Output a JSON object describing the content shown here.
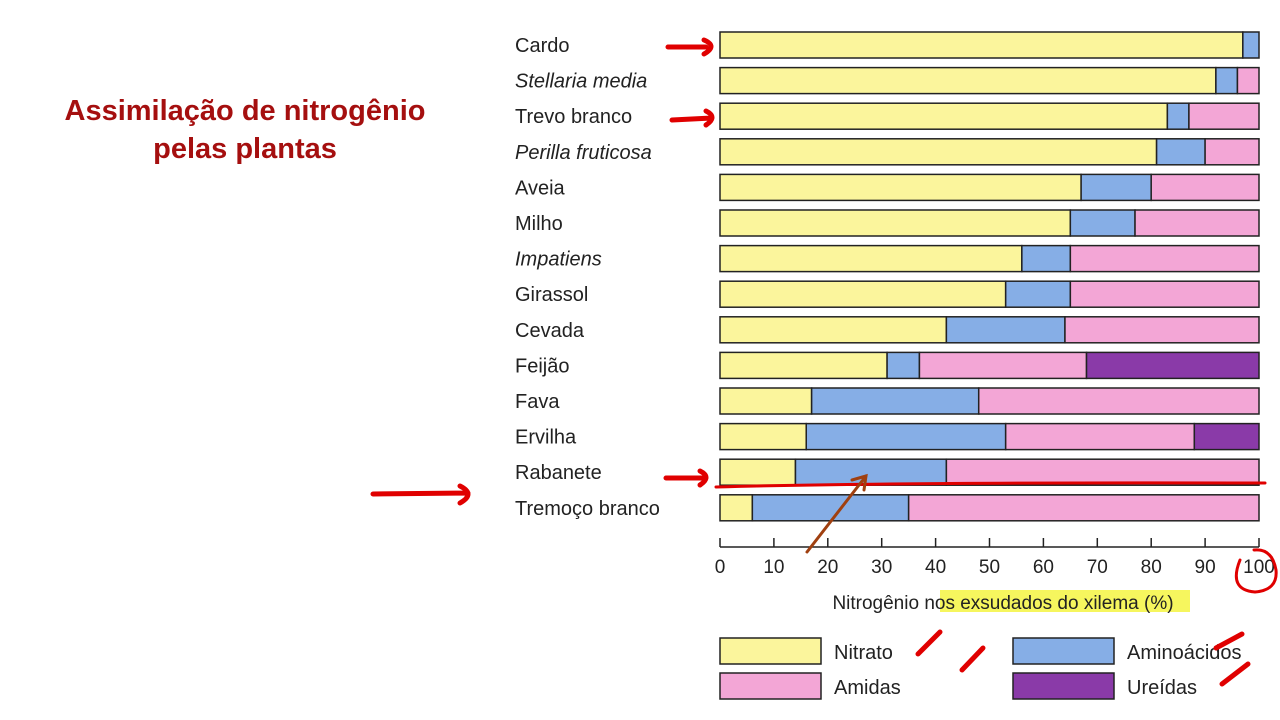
{
  "slide": {
    "title_line1": "Assimilação de nitrogênio",
    "title_line2": "pelas plantas"
  },
  "chart_data": {
    "type": "bar",
    "orientation": "horizontal",
    "stacked": true,
    "xlabel": "Nitrogênio nos exsudados do xilema (%)",
    "xlim": [
      0,
      100
    ],
    "xticks": [
      0,
      10,
      20,
      30,
      40,
      50,
      60,
      70,
      80,
      90,
      100
    ],
    "categories": [
      "Cardo",
      "Stellaria media",
      "Trevo branco",
      "Perilla fruticosa",
      "Aveia",
      "Milho",
      "Impatiens",
      "Girassol",
      "Cevada",
      "Feijão",
      "Fava",
      "Ervilha",
      "Rabanete",
      "Tremoço branco"
    ],
    "italic_categories": [
      "Stellaria media",
      "Perilla fruticosa",
      "Impatiens"
    ],
    "series": [
      {
        "name": "Nitrato",
        "color": "#fbf59c",
        "values": [
          97,
          92,
          83,
          81,
          67,
          65,
          56,
          53,
          42,
          31,
          17,
          16,
          14,
          6
        ]
      },
      {
        "name": "Aminoácidos",
        "color": "#86aee6",
        "values": [
          3,
          4,
          4,
          9,
          13,
          12,
          9,
          12,
          22,
          6,
          31,
          37,
          28,
          29
        ]
      },
      {
        "name": "Amidas",
        "color": "#f3a6d6",
        "values": [
          0,
          4,
          13,
          10,
          20,
          23,
          35,
          35,
          36,
          31,
          52,
          35,
          58,
          65
        ]
      },
      {
        "name": "Ureídas",
        "color": "#8a3aa8",
        "values": [
          0,
          0,
          0,
          0,
          0,
          0,
          0,
          0,
          0,
          32,
          0,
          12,
          0,
          0
        ]
      }
    ],
    "legend_position": "bottom"
  }
}
